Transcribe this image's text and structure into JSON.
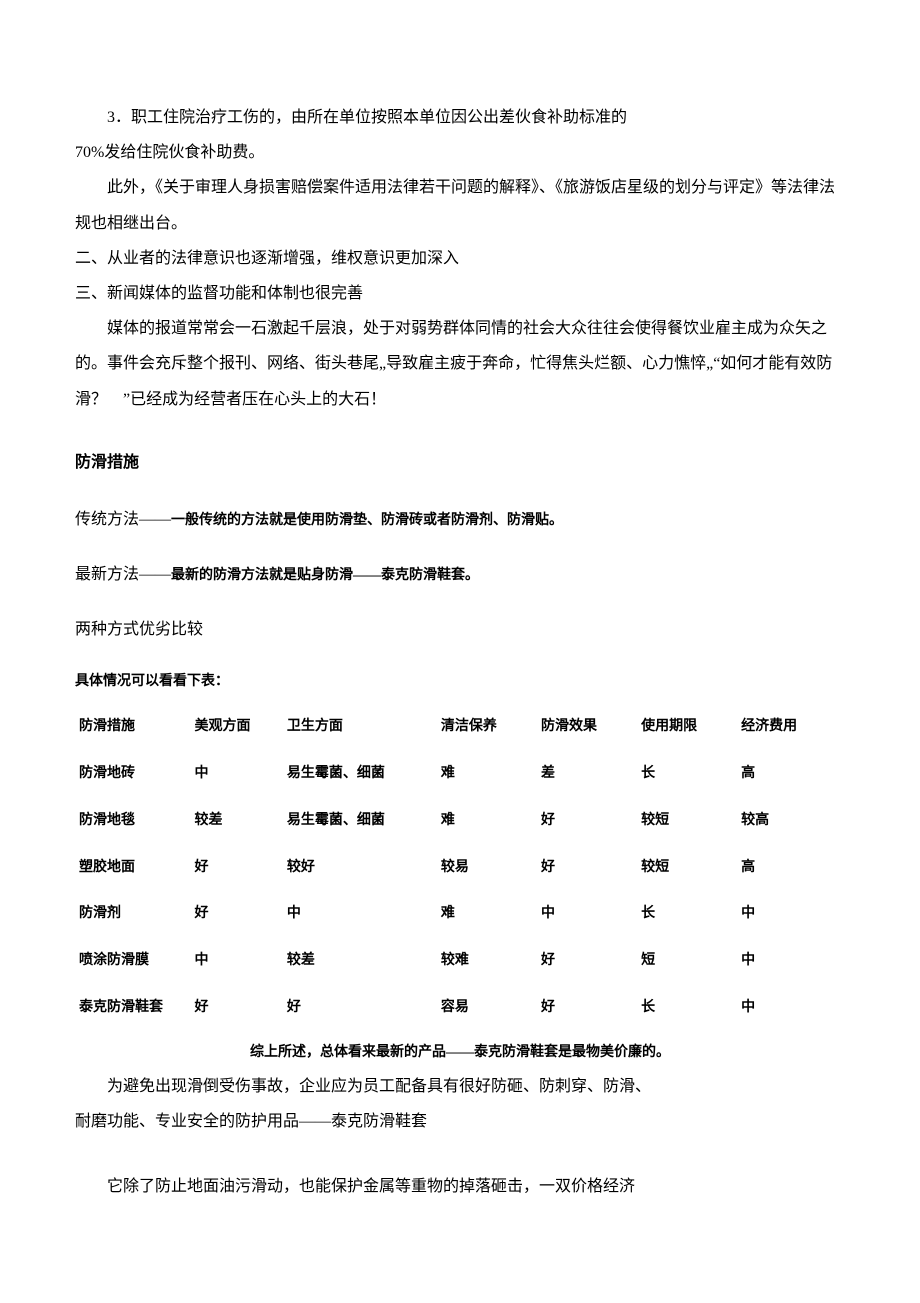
{
  "paragraphs": {
    "p1": "3．职工住院治疗工伤的，由所在单位按照本单位因公出差伙食补助标准的",
    "p2": "70%发给住院伙食补助费。",
    "p3": "此外，《关于审理人身损害赔偿案件适用法律若干问题的解释》、《旅游饭店星级的划分与评定》等法律法规也相继出台。",
    "p4": "二、从业者的法律意识也逐渐增强，维权意识更加深入",
    "p5": "三、新闻媒体的监督功能和体制也很完善",
    "p6": "媒体的报道常常会一石激起千层浪，处于对弱势群体同情的社会大众往往会使得餐饮业雇主成为众矢之的。事件会充斥整个报刊、网络、街头巷尾„导致雇主疲于奔命，忙得焦头烂额、心力憔悴„“如何才能有效防滑？　”已经成为经营者压在心头上的大石！"
  },
  "section_heading": "防滑措施",
  "methods": {
    "trad_prefix": "传统方法――",
    "trad_bold": "一般传统的方法就是使用防滑垫、防滑砖或者防滑剂、防滑贴。",
    "new_prefix": "最新方法――",
    "new_bold": "最新的防滑方法就是贴身防滑——泰克防滑鞋套。",
    "compare_title": "两种方式优劣比较"
  },
  "table": {
    "caption": "具体情况可以看看下表：",
    "columns": [
      "防滑措施",
      "美观方面",
      "卫生方面",
      "清洁保养",
      "防滑效果",
      "使用期限",
      "经济费用"
    ],
    "rows": [
      [
        "防滑地砖",
        "中",
        "易生霉菌、细菌",
        "难",
        "差",
        "长",
        "高"
      ],
      [
        "防滑地毯",
        "较差",
        "易生霉菌、细菌",
        "难",
        "好",
        "较短",
        "较高"
      ],
      [
        "塑胶地面",
        "好",
        "较好",
        "较易",
        "好",
        "较短",
        "高"
      ],
      [
        "防滑剂",
        "好",
        "中",
        "难",
        "中",
        "长",
        "中"
      ],
      [
        "喷涂防滑膜",
        "中",
        "较差",
        "较难",
        "好",
        "短",
        "中"
      ],
      [
        "泰克防滑鞋套",
        "好",
        "好",
        "容易",
        "好",
        "长",
        "中"
      ]
    ],
    "summary": "综上所述，总体看来最新的产品——泰克防滑鞋套是最物美价廉的。"
  },
  "closing": {
    "c1": "为避免出现滑倒受伤事故，企业应为员工配备具有很好防砸、防刺穿、防滑、",
    "c2": "耐磨功能、专业安全的防护用品——泰克防滑鞋套",
    "c3": "它除了防止地面油污滑动，也能保护金属等重物的掉落砸击，一双价格经济"
  }
}
